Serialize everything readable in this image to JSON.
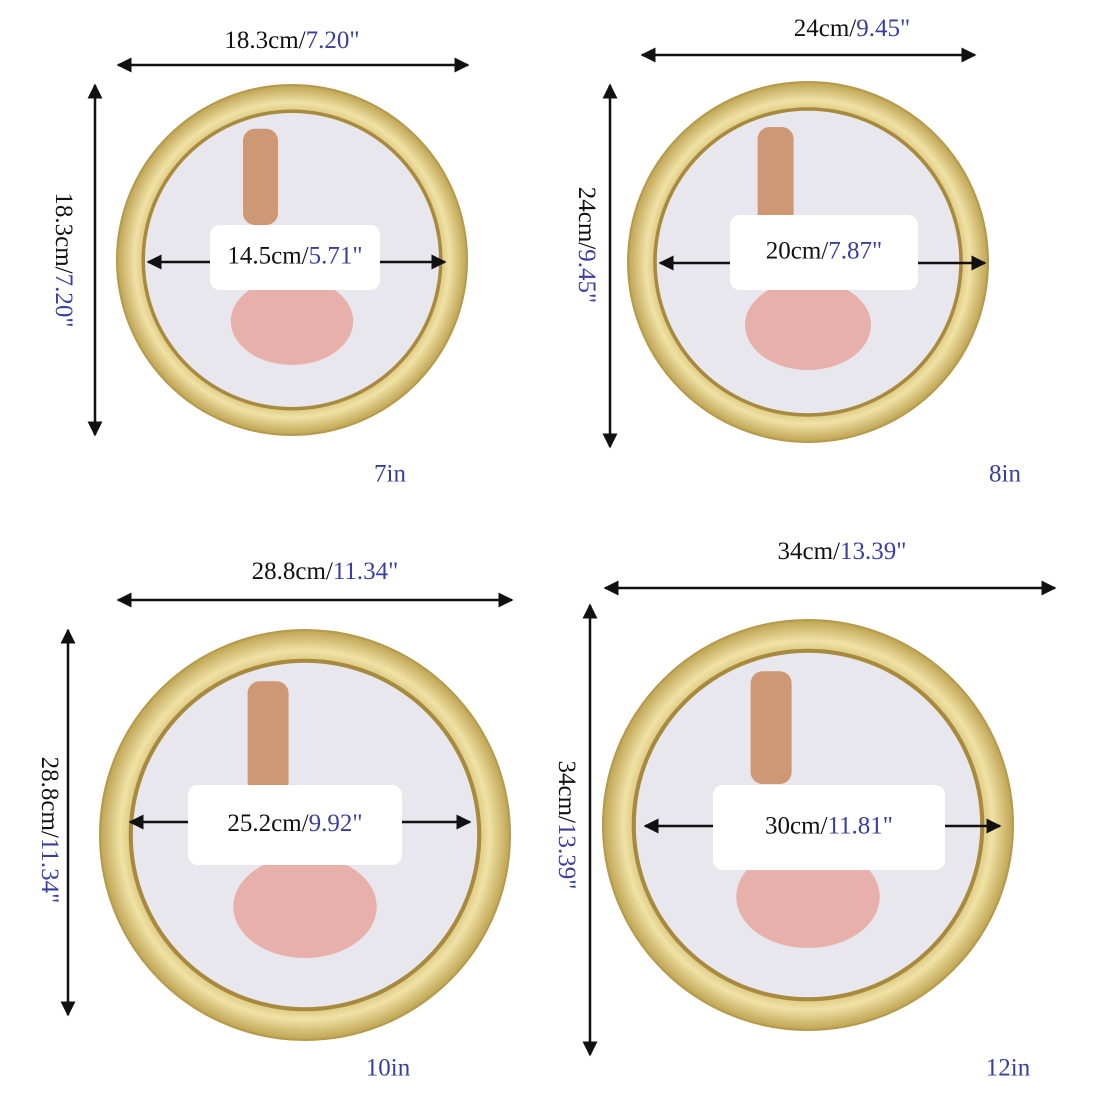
{
  "frames": [
    {
      "size": "7in",
      "outer_width": {
        "cm": "18.3cm/",
        "inch": "7.20\""
      },
      "outer_height": {
        "cm": "18.3cm/",
        "inch": "7.20\""
      },
      "inner": {
        "cm": "14.5cm/",
        "inch": "5.71\""
      }
    },
    {
      "size": "8in",
      "outer_width": {
        "cm": "24cm/",
        "inch": "9.45\""
      },
      "outer_height": {
        "cm": "24cm/",
        "inch": "9.45\""
      },
      "inner": {
        "cm": "20cm/",
        "inch": "7.87\""
      }
    },
    {
      "size": "10in",
      "outer_width": {
        "cm": "28.8cm/",
        "inch": "11.34\""
      },
      "outer_height": {
        "cm": "28.8cm/",
        "inch": "11.34\""
      },
      "inner": {
        "cm": "25.2cm/",
        "inch": "9.92\""
      }
    },
    {
      "size": "12in",
      "outer_width": {
        "cm": "34cm/",
        "inch": "13.39\""
      },
      "outer_height": {
        "cm": "34cm/",
        "inch": "13.39\""
      },
      "inner": {
        "cm": "30cm/",
        "inch": "11.81\""
      }
    }
  ]
}
